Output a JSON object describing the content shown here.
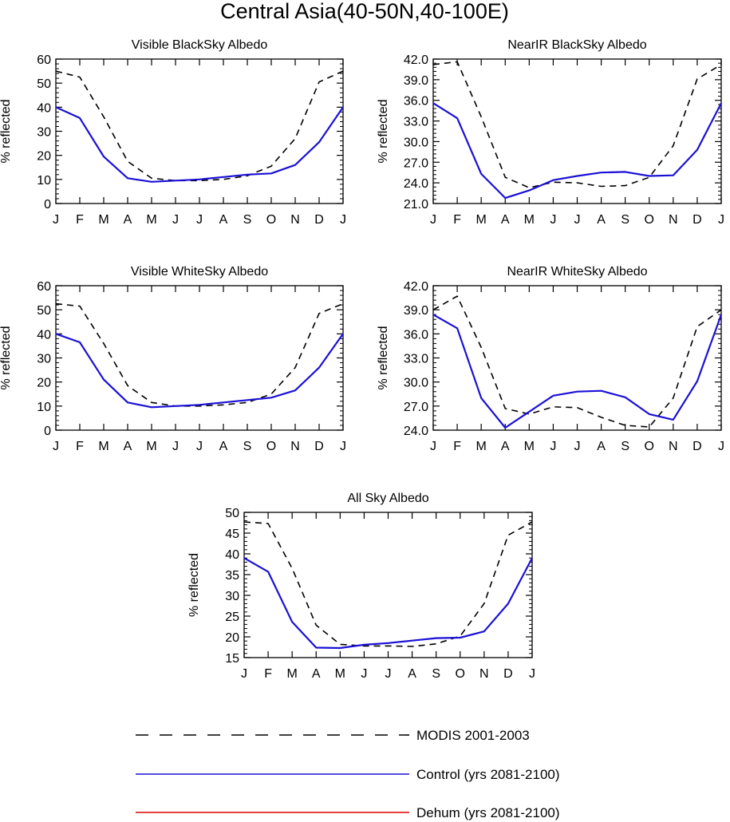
{
  "title": "Central Asia(40-50N,40-100E)",
  "colors": {
    "modis": "#000000",
    "control": "#1a10d6",
    "dehum": "#dd0000"
  },
  "legend": [
    {
      "key": "modis",
      "label": "MODIS 2001-2003",
      "style": "dashed"
    },
    {
      "key": "control",
      "label": "Control (yrs 2081-2100)",
      "style": "solid"
    },
    {
      "key": "dehum",
      "label": "Dehum (yrs 2081-2100)",
      "style": "solid"
    }
  ],
  "chart_data": [
    {
      "type": "line",
      "title": "Visible BlackSky Albedo",
      "xlabel": "",
      "ylabel": "% reflected",
      "categories": [
        "J",
        "F",
        "M",
        "A",
        "M",
        "J",
        "J",
        "A",
        "S",
        "O",
        "N",
        "D",
        "J"
      ],
      "ylim": [
        0,
        60
      ],
      "yticks": [
        "0",
        "10",
        "20",
        "30",
        "40",
        "50",
        "60"
      ],
      "series": [
        {
          "name": "MODIS 2001-2003",
          "key": "modis",
          "values": [
            55,
            52.5,
            36,
            17.5,
            10.5,
            9.5,
            9.5,
            10,
            11.5,
            15.5,
            27,
            50.5,
            55
          ]
        },
        {
          "name": "Control (yrs 2081-2100)",
          "key": "control",
          "values": [
            40,
            35.5,
            19.5,
            10.5,
            9,
            9.5,
            10,
            11,
            12,
            12.5,
            16,
            25.5,
            40
          ]
        }
      ]
    },
    {
      "type": "line",
      "title": "NearIR BlackSky Albedo",
      "xlabel": "",
      "ylabel": "% reflected",
      "categories": [
        "J",
        "F",
        "M",
        "A",
        "M",
        "J",
        "J",
        "A",
        "S",
        "O",
        "N",
        "D",
        "J"
      ],
      "ylim": [
        21,
        42
      ],
      "yticks": [
        "21.0",
        "24.0",
        "27.0",
        "30.0",
        "33.0",
        "36.0",
        "39.0",
        "42.0"
      ],
      "series": [
        {
          "name": "MODIS 2001-2003",
          "key": "modis",
          "values": [
            41.2,
            41.6,
            33.6,
            24.8,
            23.3,
            24.1,
            24.0,
            23.5,
            23.6,
            24.8,
            29.4,
            39.1,
            41.2
          ]
        },
        {
          "name": "Control (yrs 2081-2100)",
          "key": "control",
          "values": [
            35.6,
            33.4,
            25.3,
            21.8,
            22.9,
            24.4,
            25.0,
            25.5,
            25.6,
            25.0,
            25.1,
            28.8,
            35.6
          ]
        }
      ]
    },
    {
      "type": "line",
      "title": "Visible WhiteSky Albedo",
      "xlabel": "",
      "ylabel": "% reflected",
      "categories": [
        "J",
        "F",
        "M",
        "A",
        "M",
        "J",
        "J",
        "A",
        "S",
        "O",
        "N",
        "D",
        "J"
      ],
      "ylim": [
        0,
        60
      ],
      "yticks": [
        "0",
        "10",
        "20",
        "30",
        "40",
        "50",
        "60"
      ],
      "series": [
        {
          "name": "MODIS 2001-2003",
          "key": "modis",
          "values": [
            52.5,
            51.5,
            36,
            18.5,
            11.5,
            10,
            10,
            10.5,
            11.5,
            15,
            26,
            48.5,
            52.5
          ]
        },
        {
          "name": "Control (yrs 2081-2100)",
          "key": "control",
          "values": [
            40,
            36.5,
            21,
            11.5,
            9.5,
            10,
            10.5,
            11.5,
            12.5,
            13.5,
            16.5,
            26,
            40
          ]
        }
      ]
    },
    {
      "type": "line",
      "title": "NearIR WhiteSky Albedo",
      "xlabel": "",
      "ylabel": "% reflected",
      "categories": [
        "J",
        "F",
        "M",
        "A",
        "M",
        "J",
        "J",
        "A",
        "S",
        "O",
        "N",
        "D",
        "J"
      ],
      "ylim": [
        24,
        42
      ],
      "yticks": [
        "24.0",
        "27.0",
        "30.0",
        "33.0",
        "36.0",
        "39.0",
        "42.0"
      ],
      "series": [
        {
          "name": "MODIS 2001-2003",
          "key": "modis",
          "values": [
            39.0,
            40.7,
            34.3,
            26.7,
            26.0,
            26.9,
            26.8,
            25.6,
            24.6,
            24.4,
            28.0,
            36.9,
            39.0
          ]
        },
        {
          "name": "Control (yrs 2081-2100)",
          "key": "control",
          "values": [
            38.4,
            36.7,
            28.0,
            24.3,
            26.3,
            28.3,
            28.8,
            28.9,
            28.1,
            26.0,
            25.3,
            30.1,
            38.4
          ]
        }
      ]
    },
    {
      "type": "line",
      "title": "All Sky Albedo",
      "xlabel": "",
      "ylabel": "% reflected",
      "categories": [
        "J",
        "F",
        "M",
        "A",
        "M",
        "J",
        "J",
        "A",
        "S",
        "O",
        "N",
        "D",
        "J"
      ],
      "ylim": [
        15,
        50
      ],
      "yticks": [
        "15",
        "20",
        "25",
        "30",
        "35",
        "40",
        "45",
        "50"
      ],
      "series": [
        {
          "name": "MODIS 2001-2003",
          "key": "modis",
          "values": [
            47.7,
            47.3,
            36.5,
            22.8,
            18.2,
            17.8,
            17.8,
            17.7,
            18.3,
            20.2,
            28,
            44.5,
            47.7
          ]
        },
        {
          "name": "Control (yrs 2081-2100)",
          "key": "control",
          "values": [
            39,
            35.7,
            23.6,
            17.4,
            17.3,
            18.1,
            18.5,
            19.1,
            19.7,
            19.8,
            21.3,
            28,
            39
          ]
        }
      ]
    }
  ]
}
